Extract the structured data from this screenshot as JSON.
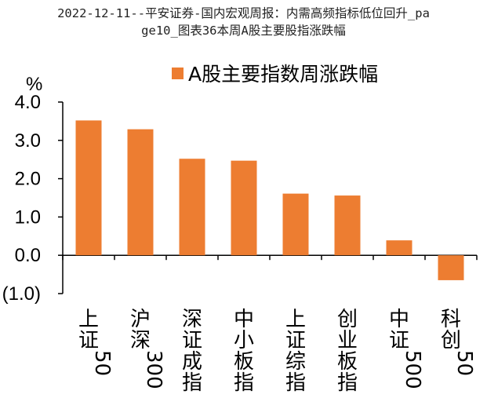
{
  "header": {
    "title_line1": "2022-12-11--平安证券-国内宏观周报：内需高频指标低位回升_pa",
    "title_line2": "ge10_图表36本周A股主要股指涨跌幅"
  },
  "chart_data": {
    "type": "bar",
    "unit": "%",
    "categories": [
      "上证50",
      "沪深300",
      "深证成指",
      "中小板指",
      "上证综指",
      "创业板指",
      "中证500",
      "科创50"
    ],
    "series": [
      {
        "name": "A股主要指数周涨跌幅",
        "values": [
          3.52,
          3.29,
          2.52,
          2.47,
          1.61,
          1.56,
          0.39,
          -0.65
        ]
      }
    ],
    "ylim": [
      -1.0,
      4.0
    ],
    "yticks": [
      -1.0,
      0.0,
      1.0,
      2.0,
      3.0,
      4.0
    ],
    "ytick_labels": [
      "(1.0)",
      "0.0",
      "1.0",
      "2.0",
      "3.0",
      "4.0"
    ],
    "negative_tick_color": "#cc0000",
    "bar_color": "#ed7d31",
    "legend_position": "top",
    "grid": false
  }
}
